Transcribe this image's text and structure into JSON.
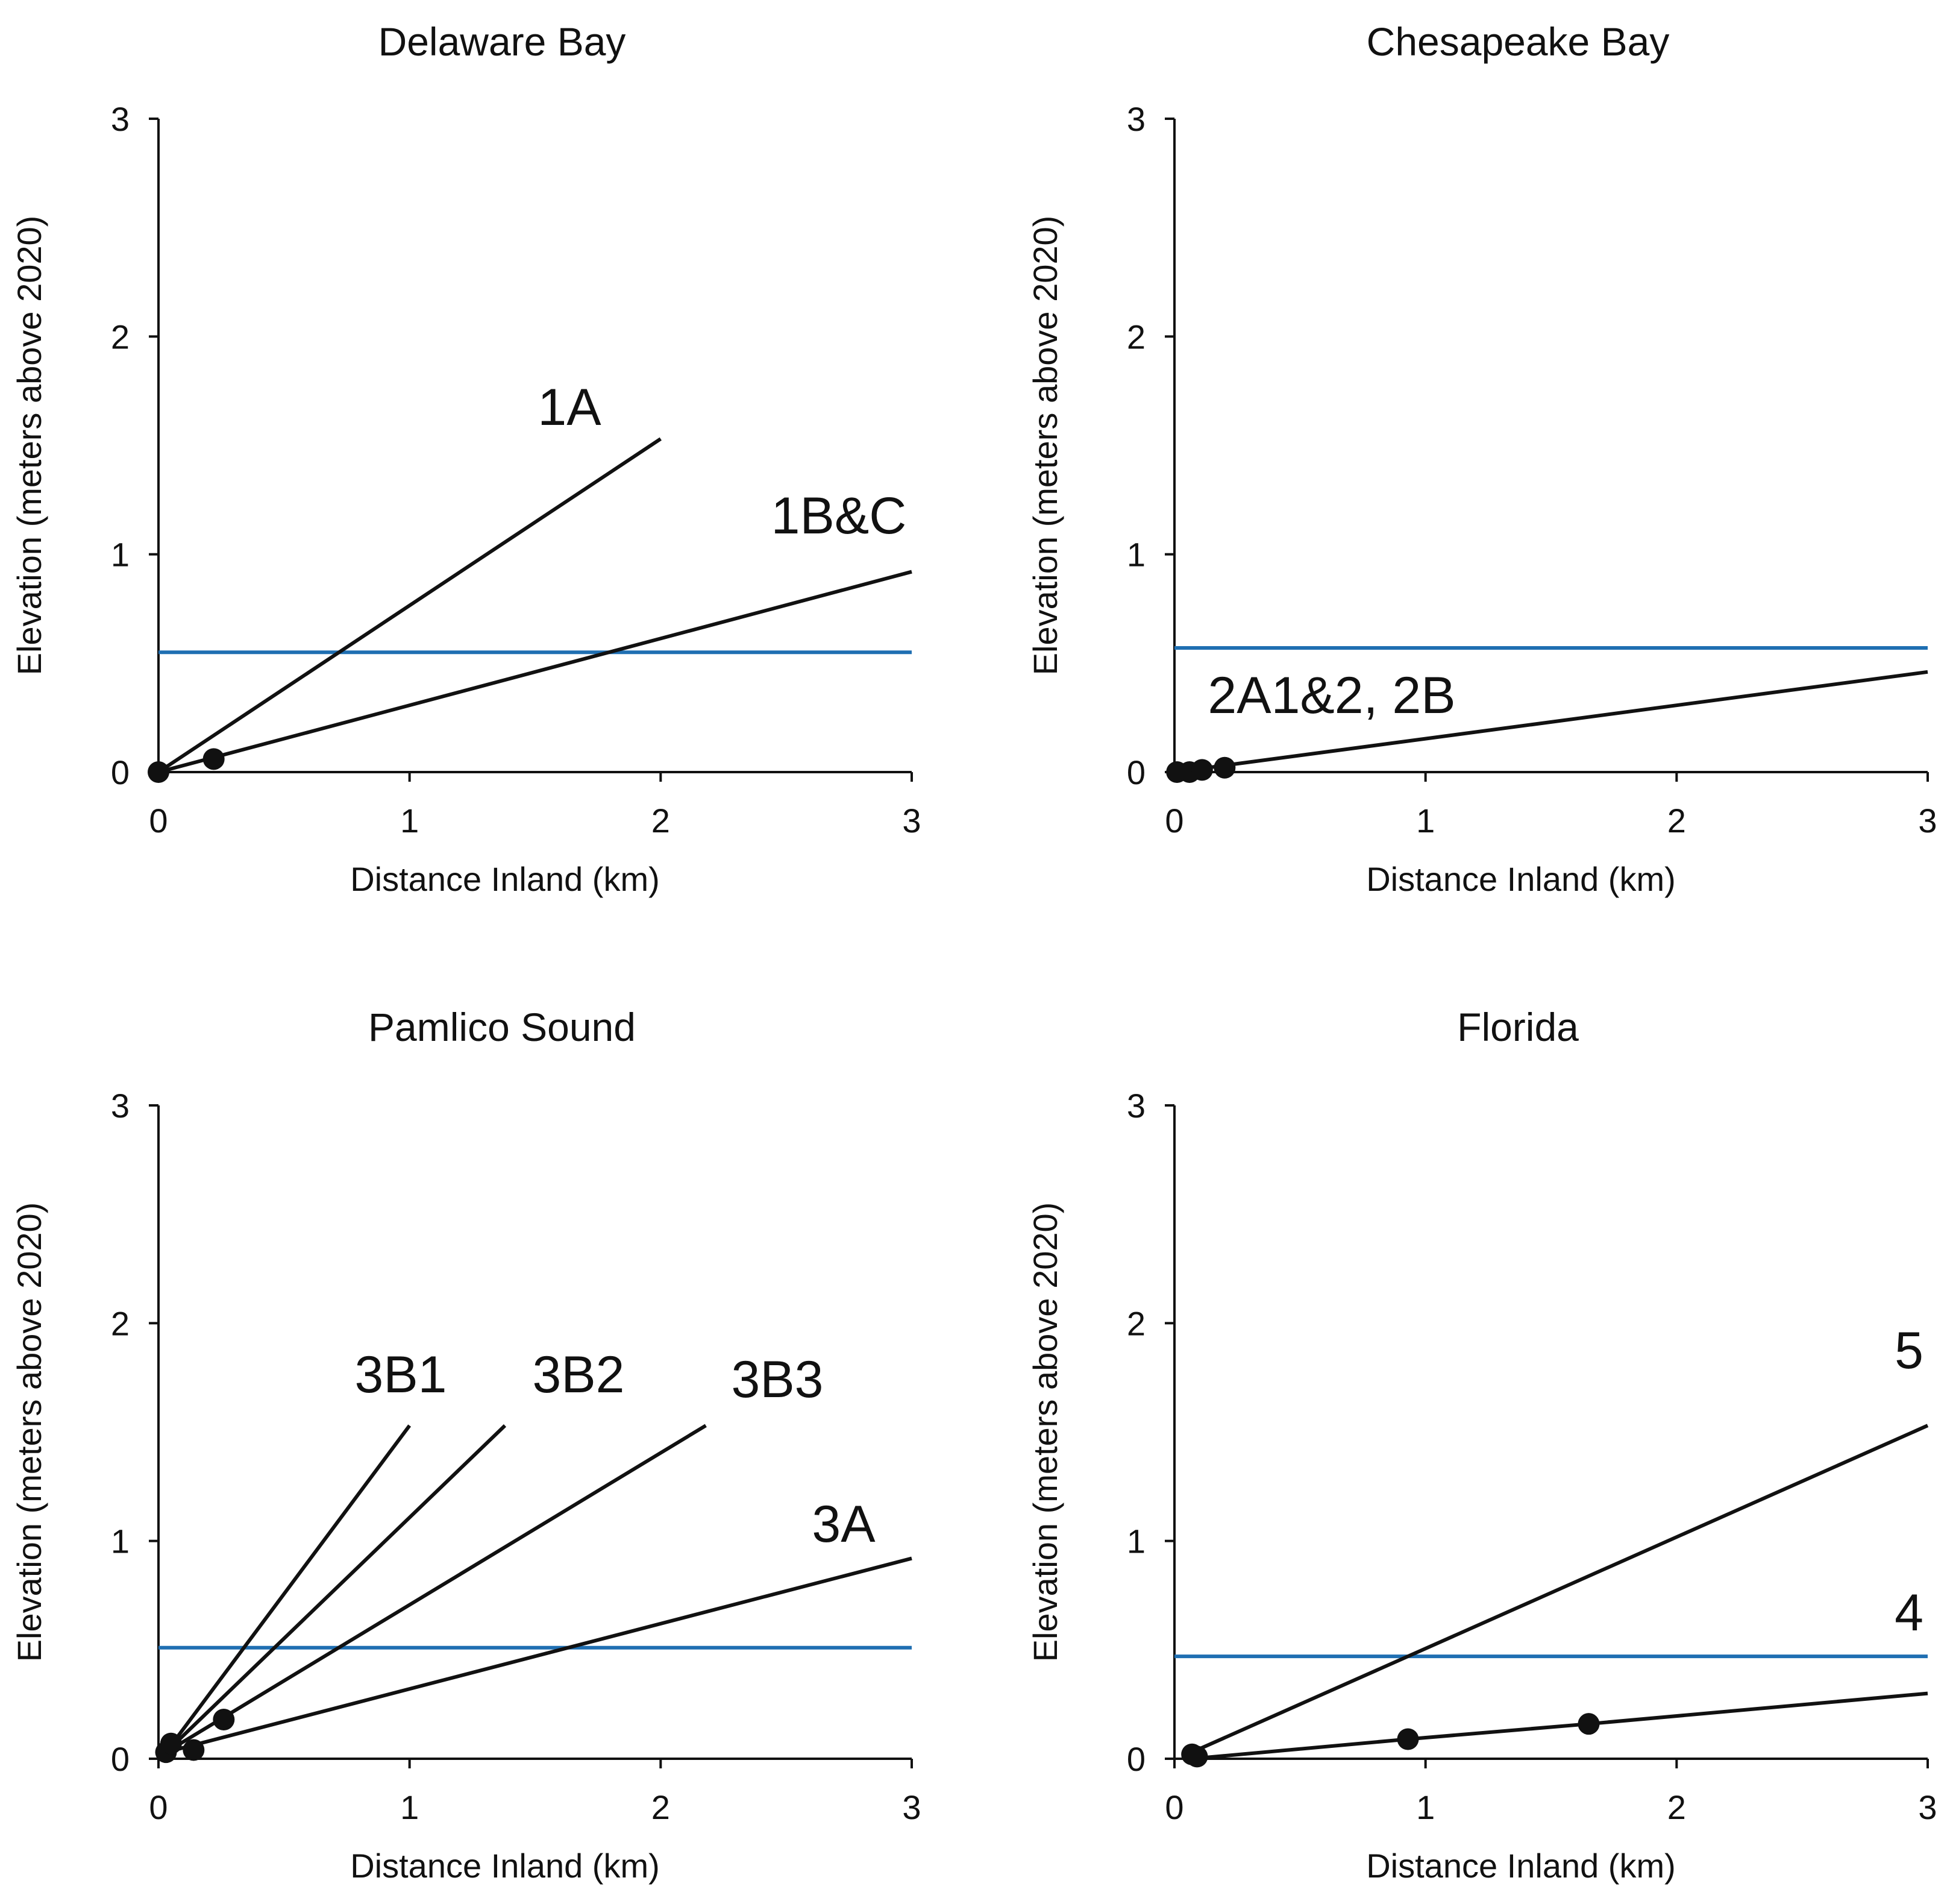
{
  "chart_data": [
    {
      "type": "line",
      "title": "Delaware Bay",
      "xlabel": "Distance Inland (km)",
      "ylabel": "Elevation (meters above 2020)",
      "xlim": [
        0,
        3
      ],
      "ylim": [
        0,
        3
      ],
      "xticks": [
        "0",
        "1",
        "2",
        "3"
      ],
      "yticks": [
        "0",
        "1",
        "2",
        "3"
      ],
      "grid": false,
      "reference_line": {
        "y": 0.55,
        "color": "#1f6fb2"
      },
      "series": [
        {
          "name": "1A",
          "points": [
            [
              0,
              0
            ],
            [
              2.0,
              1.53
            ]
          ]
        },
        {
          "name": "1B&C",
          "points": [
            [
              0,
              0
            ],
            [
              3.0,
              0.92
            ]
          ]
        }
      ],
      "markers": [
        [
          0.0,
          0.0
        ],
        [
          0.22,
          0.06
        ]
      ]
    },
    {
      "type": "line",
      "title": "Chesapeake Bay",
      "xlabel": "Distance Inland (km)",
      "ylabel": "Elevation (meters above 2020)",
      "xlim": [
        0,
        3
      ],
      "ylim": [
        0,
        3
      ],
      "xticks": [
        "0",
        "1",
        "2",
        "3"
      ],
      "yticks": [
        "0",
        "1",
        "2",
        "3"
      ],
      "grid": false,
      "reference_line": {
        "y": 0.57,
        "color": "#1f6fb2"
      },
      "series": [
        {
          "name": "2A1&2, 2B",
          "points": [
            [
              0,
              0
            ],
            [
              3.0,
              0.46
            ]
          ]
        }
      ],
      "markers": [
        [
          0.01,
          0.0
        ],
        [
          0.06,
          0.0
        ],
        [
          0.11,
          0.01
        ],
        [
          0.2,
          0.02
        ]
      ]
    },
    {
      "type": "line",
      "title": "Pamlico Sound",
      "xlabel": "Distance Inland (km)",
      "ylabel": "Elevation (meters above 2020)",
      "xlim": [
        0,
        3
      ],
      "ylim": [
        0,
        3
      ],
      "xticks": [
        "0",
        "1",
        "2",
        "3"
      ],
      "yticks": [
        "0",
        "1",
        "2",
        "3"
      ],
      "grid": false,
      "reference_line": {
        "y": 0.51,
        "color": "#1f6fb2"
      },
      "series": [
        {
          "name": "3B1",
          "points": [
            [
              0.03,
              0.03
            ],
            [
              1.0,
              1.53
            ]
          ]
        },
        {
          "name": "3B2",
          "points": [
            [
              0.03,
              0.03
            ],
            [
              1.38,
              1.53
            ]
          ]
        },
        {
          "name": "3B3",
          "points": [
            [
              0.03,
              0.03
            ],
            [
              2.18,
              1.53
            ]
          ]
        },
        {
          "name": "3A",
          "points": [
            [
              0.03,
              0.03
            ],
            [
              3.0,
              0.92
            ]
          ]
        }
      ],
      "markers": [
        [
          0.03,
          0.03
        ],
        [
          0.05,
          0.07
        ],
        [
          0.14,
          0.04
        ],
        [
          0.26,
          0.18
        ]
      ]
    },
    {
      "type": "line",
      "title": "Florida",
      "xlabel": "Distance Inland (km)",
      "ylabel": "Elevation (meters above 2020)",
      "xlim": [
        0,
        3
      ],
      "ylim": [
        0,
        3
      ],
      "xticks": [
        "0",
        "1",
        "2",
        "3"
      ],
      "yticks": [
        "0",
        "1",
        "2",
        "3"
      ],
      "grid": false,
      "reference_line": {
        "y": 0.47,
        "color": "#1f6fb2"
      },
      "series": [
        {
          "name": "5",
          "points": [
            [
              0.07,
              0.03
            ],
            [
              3.0,
              1.53
            ]
          ]
        },
        {
          "name": "4",
          "points": [
            [
              0.07,
              0.0
            ],
            [
              0.93,
              0.09
            ],
            [
              1.65,
              0.16
            ],
            [
              3.0,
              0.3
            ]
          ]
        }
      ],
      "markers": [
        [
          0.07,
          0.02
        ],
        [
          0.09,
          0.01
        ],
        [
          0.93,
          0.09
        ],
        [
          1.65,
          0.16
        ]
      ]
    }
  ]
}
